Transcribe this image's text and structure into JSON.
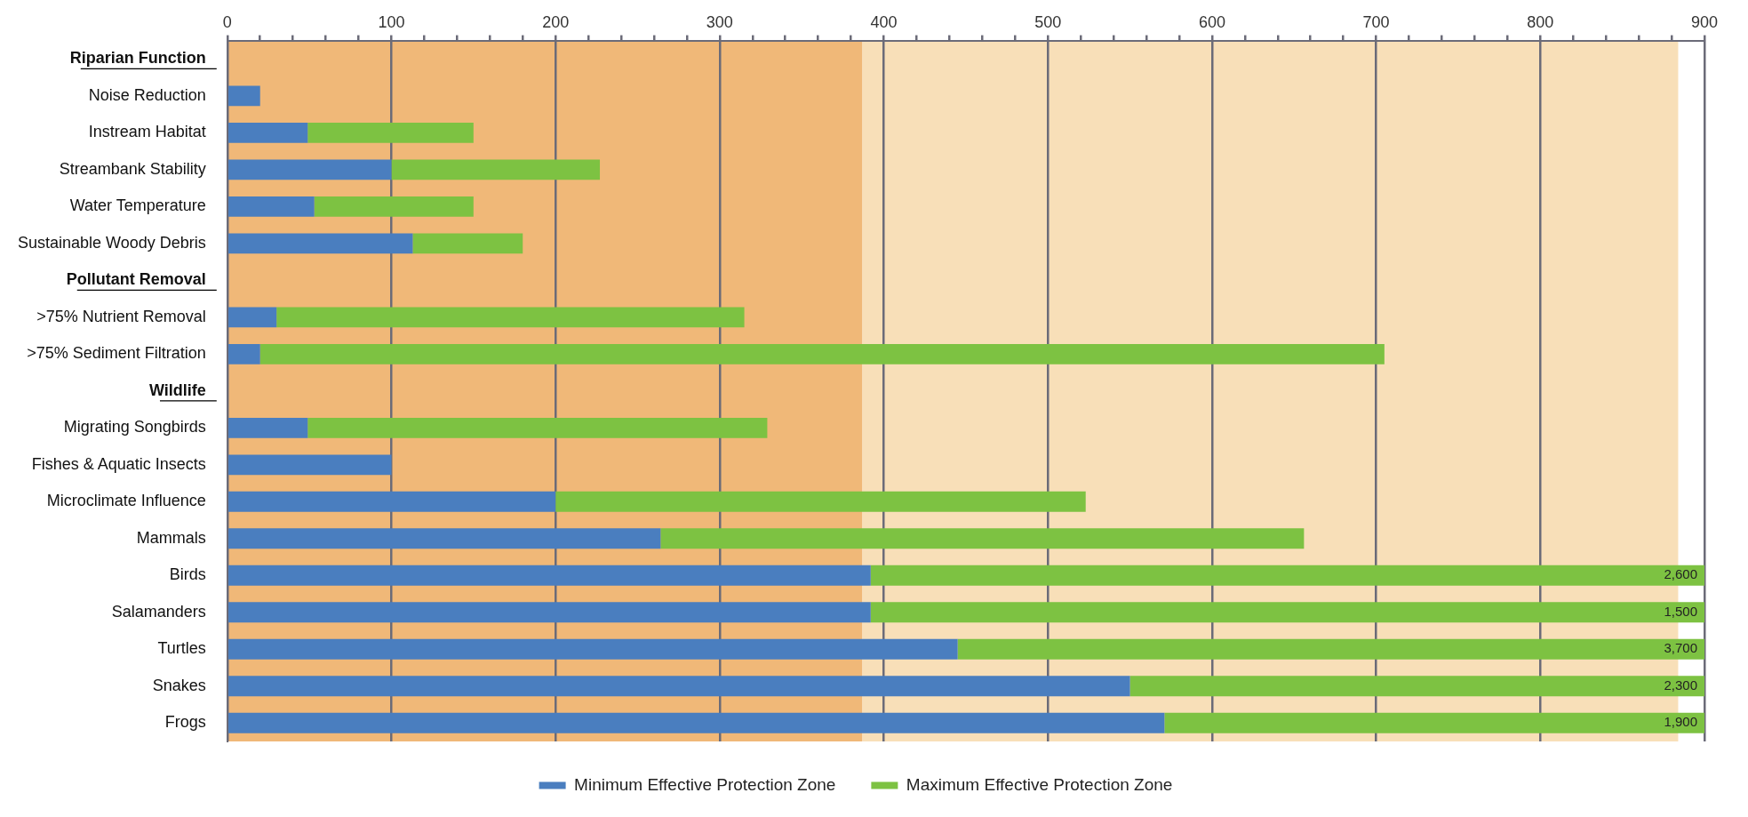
{
  "chart_data": {
    "type": "bar",
    "orientation": "horizontal",
    "stacked": true,
    "categories": [
      "Riparian Function",
      "Noise Reduction",
      "Instream Habitat",
      "Streambank Stability",
      "Water Temperature",
      "Sustainable Woody Debris",
      "Pollutant Removal",
      ">75% Nutrient Removal",
      ">75% Sediment Filtration",
      "Wildlife",
      "Migrating Songbirds",
      "Fishes & Aquatic Insects",
      "Microclimate Influence",
      "Mammals",
      "Birds",
      "Salamanders",
      "Turtles",
      "Snakes",
      "Frogs"
    ],
    "series": [
      {
        "name": "Minimum Effective Protection Zone",
        "color": "#4a7ebf",
        "values": [
          null,
          20,
          49,
          100,
          53,
          113,
          null,
          30,
          20,
          null,
          49,
          100,
          200,
          264,
          392,
          392,
          445,
          550,
          571
        ]
      },
      {
        "name": "Maximum Effective Protection Zone",
        "color": "#7dc242",
        "values": [
          null,
          null,
          101,
          127,
          97,
          67,
          null,
          285,
          685,
          null,
          280,
          null,
          323,
          392,
          508,
          508,
          455,
          350,
          329
        ]
      }
    ],
    "xlim": [
      0,
      900
    ],
    "xticks": [
      0,
      {
        "value": 20,
        "label": null
      },
      {
        "value": 40,
        "label": null
      },
      {
        "value": 60,
        "label": null
      },
      {
        "value": 80,
        "label": null
      },
      100,
      {
        "value": 120,
        "label": null
      },
      {
        "value": 140,
        "label": null
      },
      {
        "value": 160,
        "label": null
      },
      {
        "value": 180,
        "label": null
      },
      200,
      {
        "value": 220,
        "label": null
      },
      {
        "value": 240,
        "label": null
      },
      {
        "value": 260,
        "label": null
      },
      {
        "value": 280,
        "label": null
      },
      300,
      {
        "value": 320,
        "label": null
      },
      {
        "value": 340,
        "label": null
      },
      {
        "value": 360,
        "label": null
      },
      {
        "value": 380,
        "label": null
      },
      400,
      {
        "value": 420,
        "label": null
      },
      {
        "value": 440,
        "label": null
      },
      {
        "value": 460,
        "label": null
      },
      {
        "value": 480,
        "label": null
      },
      500,
      {
        "value": 520,
        "label": null
      },
      {
        "value": 540,
        "label": null
      },
      {
        "value": 560,
        "label": null
      },
      {
        "value": 580,
        "label": null
      },
      600,
      {
        "value": 620,
        "label": null
      },
      {
        "value": 640,
        "label": null
      },
      {
        "value": 660,
        "label": null
      },
      {
        "value": 680,
        "label": null
      },
      700,
      {
        "value": 720,
        "label": null
      },
      {
        "value": 740,
        "label": null
      },
      {
        "value": 760,
        "label": null
      },
      {
        "value": 780,
        "label": null
      },
      800,
      {
        "value": 820,
        "label": null
      },
      {
        "value": 840,
        "label": null
      },
      {
        "value": 860,
        "label": null
      },
      {
        "value": 880,
        "label": null
      },
      900
    ],
    "grid": "x",
    "legend": "bottom",
    "bands": [
      {
        "axis": "x",
        "from": 0,
        "to": 387,
        "color": "#f0b878"
      },
      {
        "axis": "x",
        "from": 387,
        "to": 884,
        "color": "#f8dfb8"
      }
    ],
    "annotations": [
      {
        "text": "2,600",
        "y": "Birds"
      },
      {
        "text": "1,500",
        "y": "Salamanders"
      },
      {
        "text": "3,700",
        "y": "Turtles"
      },
      {
        "text": "2,300",
        "y": "Snakes"
      },
      {
        "text": "1,900",
        "y": "Frogs"
      }
    ]
  }
}
